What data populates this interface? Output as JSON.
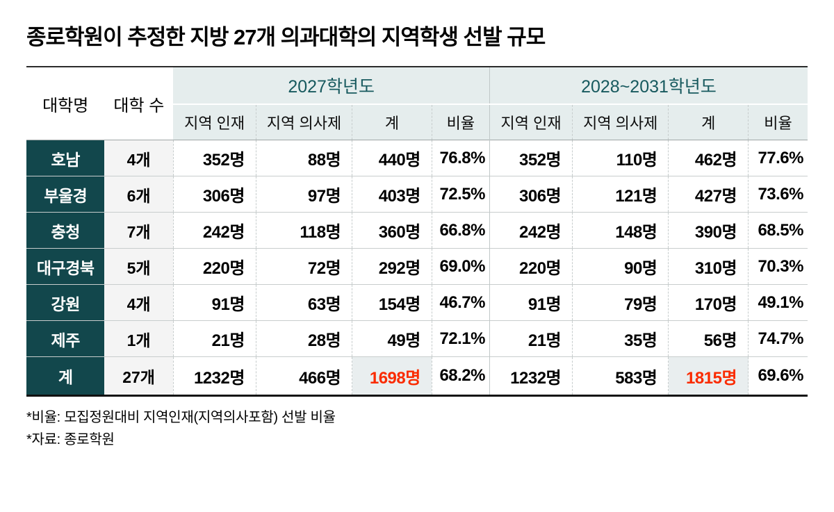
{
  "title": "종로학원이 추정한 지방 27개 의과대학의 지역학생 선발 규모",
  "table": {
    "header": {
      "region": "대학명",
      "count": "대학 수",
      "group1": "2027학년도",
      "group2": "2028~2031학년도",
      "sub": [
        "지역 인재",
        "지역 의사제",
        "계",
        "비율"
      ]
    },
    "rows": [
      [
        "호남",
        "4개",
        "352명",
        "88명",
        "440명",
        "76.8%",
        "352명",
        "110명",
        "462명",
        "77.6%"
      ],
      [
        "부울경",
        "6개",
        "306명",
        "97명",
        "403명",
        "72.5%",
        "306명",
        "121명",
        "427명",
        "73.6%"
      ],
      [
        "충청",
        "7개",
        "242명",
        "118명",
        "360명",
        "66.8%",
        "242명",
        "148명",
        "390명",
        "68.5%"
      ],
      [
        "대구경북",
        "5개",
        "220명",
        "72명",
        "292명",
        "69.0%",
        "220명",
        "90명",
        "310명",
        "70.3%"
      ],
      [
        "강원",
        "4개",
        "91명",
        "63명",
        "154명",
        "46.7%",
        "91명",
        "79명",
        "170명",
        "49.1%"
      ],
      [
        "제주",
        "1개",
        "21명",
        "28명",
        "49명",
        "72.1%",
        "21명",
        "35명",
        "56명",
        "74.7%"
      ],
      [
        "계",
        "27개",
        "1232명",
        "466명",
        "1698명",
        "68.2%",
        "1232명",
        "583명",
        "1815명",
        "69.6%"
      ]
    ]
  },
  "footnotes": [
    "*비율: 모집정원대비 지역인재(지역의사포함) 선발 비율",
    "*자료: 종로학원"
  ],
  "colors": {
    "region_cell_bg": "#12474c",
    "header_band_bg": "#e5eded",
    "header_year_text": "#17595e",
    "count_column_bg": "#f4f4f4",
    "highlight_cell_bg": "#e9eeef",
    "highlight_text": "#fa2b00",
    "row_divider": "#c8cdcd",
    "frame_top": "#2b2b2b",
    "frame_bottom": "#111111"
  },
  "chart_data": {
    "type": "table",
    "title": "종로학원이 추정한 지방 27개 의과대학의 지역학생 선발 규모",
    "columns": [
      "대학명",
      "대학 수",
      "2027학년도 지역 인재",
      "2027학년도 지역 의사제",
      "2027학년도 계",
      "2027학년도 비율",
      "2028~2031학년도 지역 인재",
      "2028~2031학년도 지역 의사제",
      "2028~2031학년도 계",
      "2028~2031학년도 비율"
    ],
    "rows": [
      [
        "호남",
        4,
        352,
        88,
        440,
        "76.8%",
        352,
        110,
        462,
        "77.6%"
      ],
      [
        "부울경",
        6,
        306,
        97,
        403,
        "72.5%",
        306,
        121,
        427,
        "73.6%"
      ],
      [
        "충청",
        7,
        242,
        118,
        360,
        "66.8%",
        242,
        148,
        390,
        "68.5%"
      ],
      [
        "대구경북",
        5,
        220,
        72,
        292,
        "69.0%",
        220,
        90,
        310,
        "70.3%"
      ],
      [
        "강원",
        4,
        91,
        63,
        154,
        "46.7%",
        91,
        79,
        170,
        "49.1%"
      ],
      [
        "제주",
        1,
        21,
        28,
        49,
        "72.1%",
        21,
        35,
        56,
        "74.7%"
      ],
      [
        "계",
        27,
        1232,
        466,
        1698,
        "68.2%",
        1232,
        583,
        1815,
        "69.6%"
      ]
    ],
    "notes": [
      "비율 = 모집정원대비 지역인재(지역의사포함) 선발 비율",
      "자료: 종로학원"
    ],
    "highlighted_values": [
      "1698명",
      "1815명"
    ]
  }
}
